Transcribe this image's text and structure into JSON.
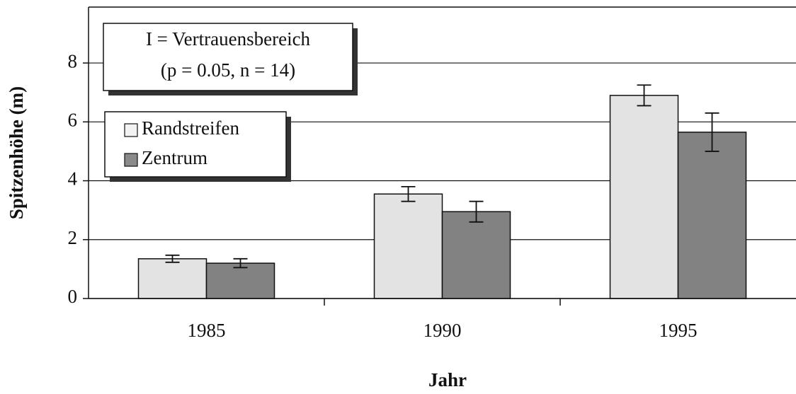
{
  "chart_data": {
    "type": "bar",
    "x_label": "Jahr",
    "y_label": "Spitzenhöhe (m)",
    "annotations": [
      "I = Vertrauensbereich",
      "(p = 0.05, n = 14)"
    ],
    "categories": [
      "1985",
      "1990",
      "1995"
    ],
    "series": [
      {
        "name": "Randstreifen",
        "color": "#f2f2f2",
        "values": [
          1.35,
          3.55,
          6.9
        ],
        "errors": [
          0.12,
          0.25,
          0.35
        ]
      },
      {
        "name": "Zentrum",
        "color": "#8a8a8a",
        "values": [
          1.2,
          2.95,
          5.65
        ],
        "errors": [
          0.15,
          0.35,
          0.65
        ]
      }
    ],
    "ylim": [
      0,
      9.9
    ],
    "yticks": [
      0,
      2,
      4,
      6,
      8
    ],
    "grid": true,
    "legend": "upper left"
  }
}
